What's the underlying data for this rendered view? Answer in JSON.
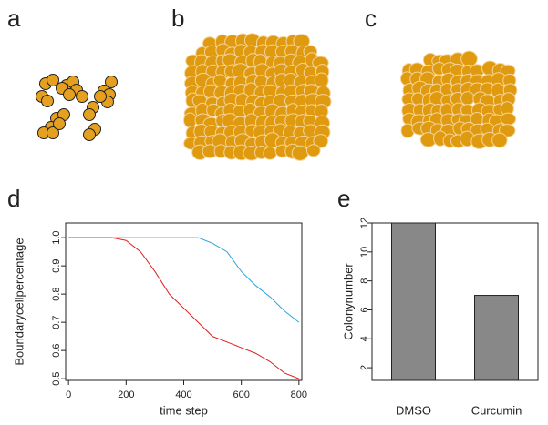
{
  "panel_labels": [
    "a",
    "b",
    "c",
    "d",
    "e"
  ],
  "chart_data": [
    {
      "type": "line",
      "xlabel": "time step",
      "ylabel": "Boundarycellpercentage",
      "x": [
        0,
        50,
        100,
        150,
        200,
        250,
        300,
        350,
        400,
        450,
        500,
        550,
        600,
        650,
        700,
        750,
        800
      ],
      "series": [
        {
          "color": "#29a3e0",
          "values": [
            1,
            1,
            1,
            1,
            1,
            1,
            1,
            1,
            1,
            1,
            0.98,
            0.95,
            0.88,
            0.83,
            0.79,
            0.74,
            0.7
          ]
        },
        {
          "color": "#e02020",
          "values": [
            1,
            1,
            1,
            1,
            0.99,
            0.95,
            0.88,
            0.8,
            0.75,
            0.7,
            0.65,
            0.63,
            0.61,
            0.59,
            0.56,
            0.52,
            0.5
          ]
        }
      ],
      "xlim": [
        -10,
        810
      ],
      "xticks": [
        0,
        200,
        400,
        600,
        800
      ],
      "ylim": [
        0.494,
        1.052
      ],
      "yticks": [
        0.5,
        0.6,
        0.7,
        0.8,
        0.9,
        {
          "value": 1,
          "label": "1.0"
        }
      ]
    },
    {
      "type": "bar",
      "ylabel": "Colonynumber",
      "categories": [
        "DMSO",
        "Curcumin"
      ],
      "values": [
        12,
        7
      ],
      "color": "#888888",
      "ylim": [
        1.125,
        12
      ],
      "yticks": [
        2,
        4,
        6,
        8,
        10,
        12
      ]
    }
  ]
}
